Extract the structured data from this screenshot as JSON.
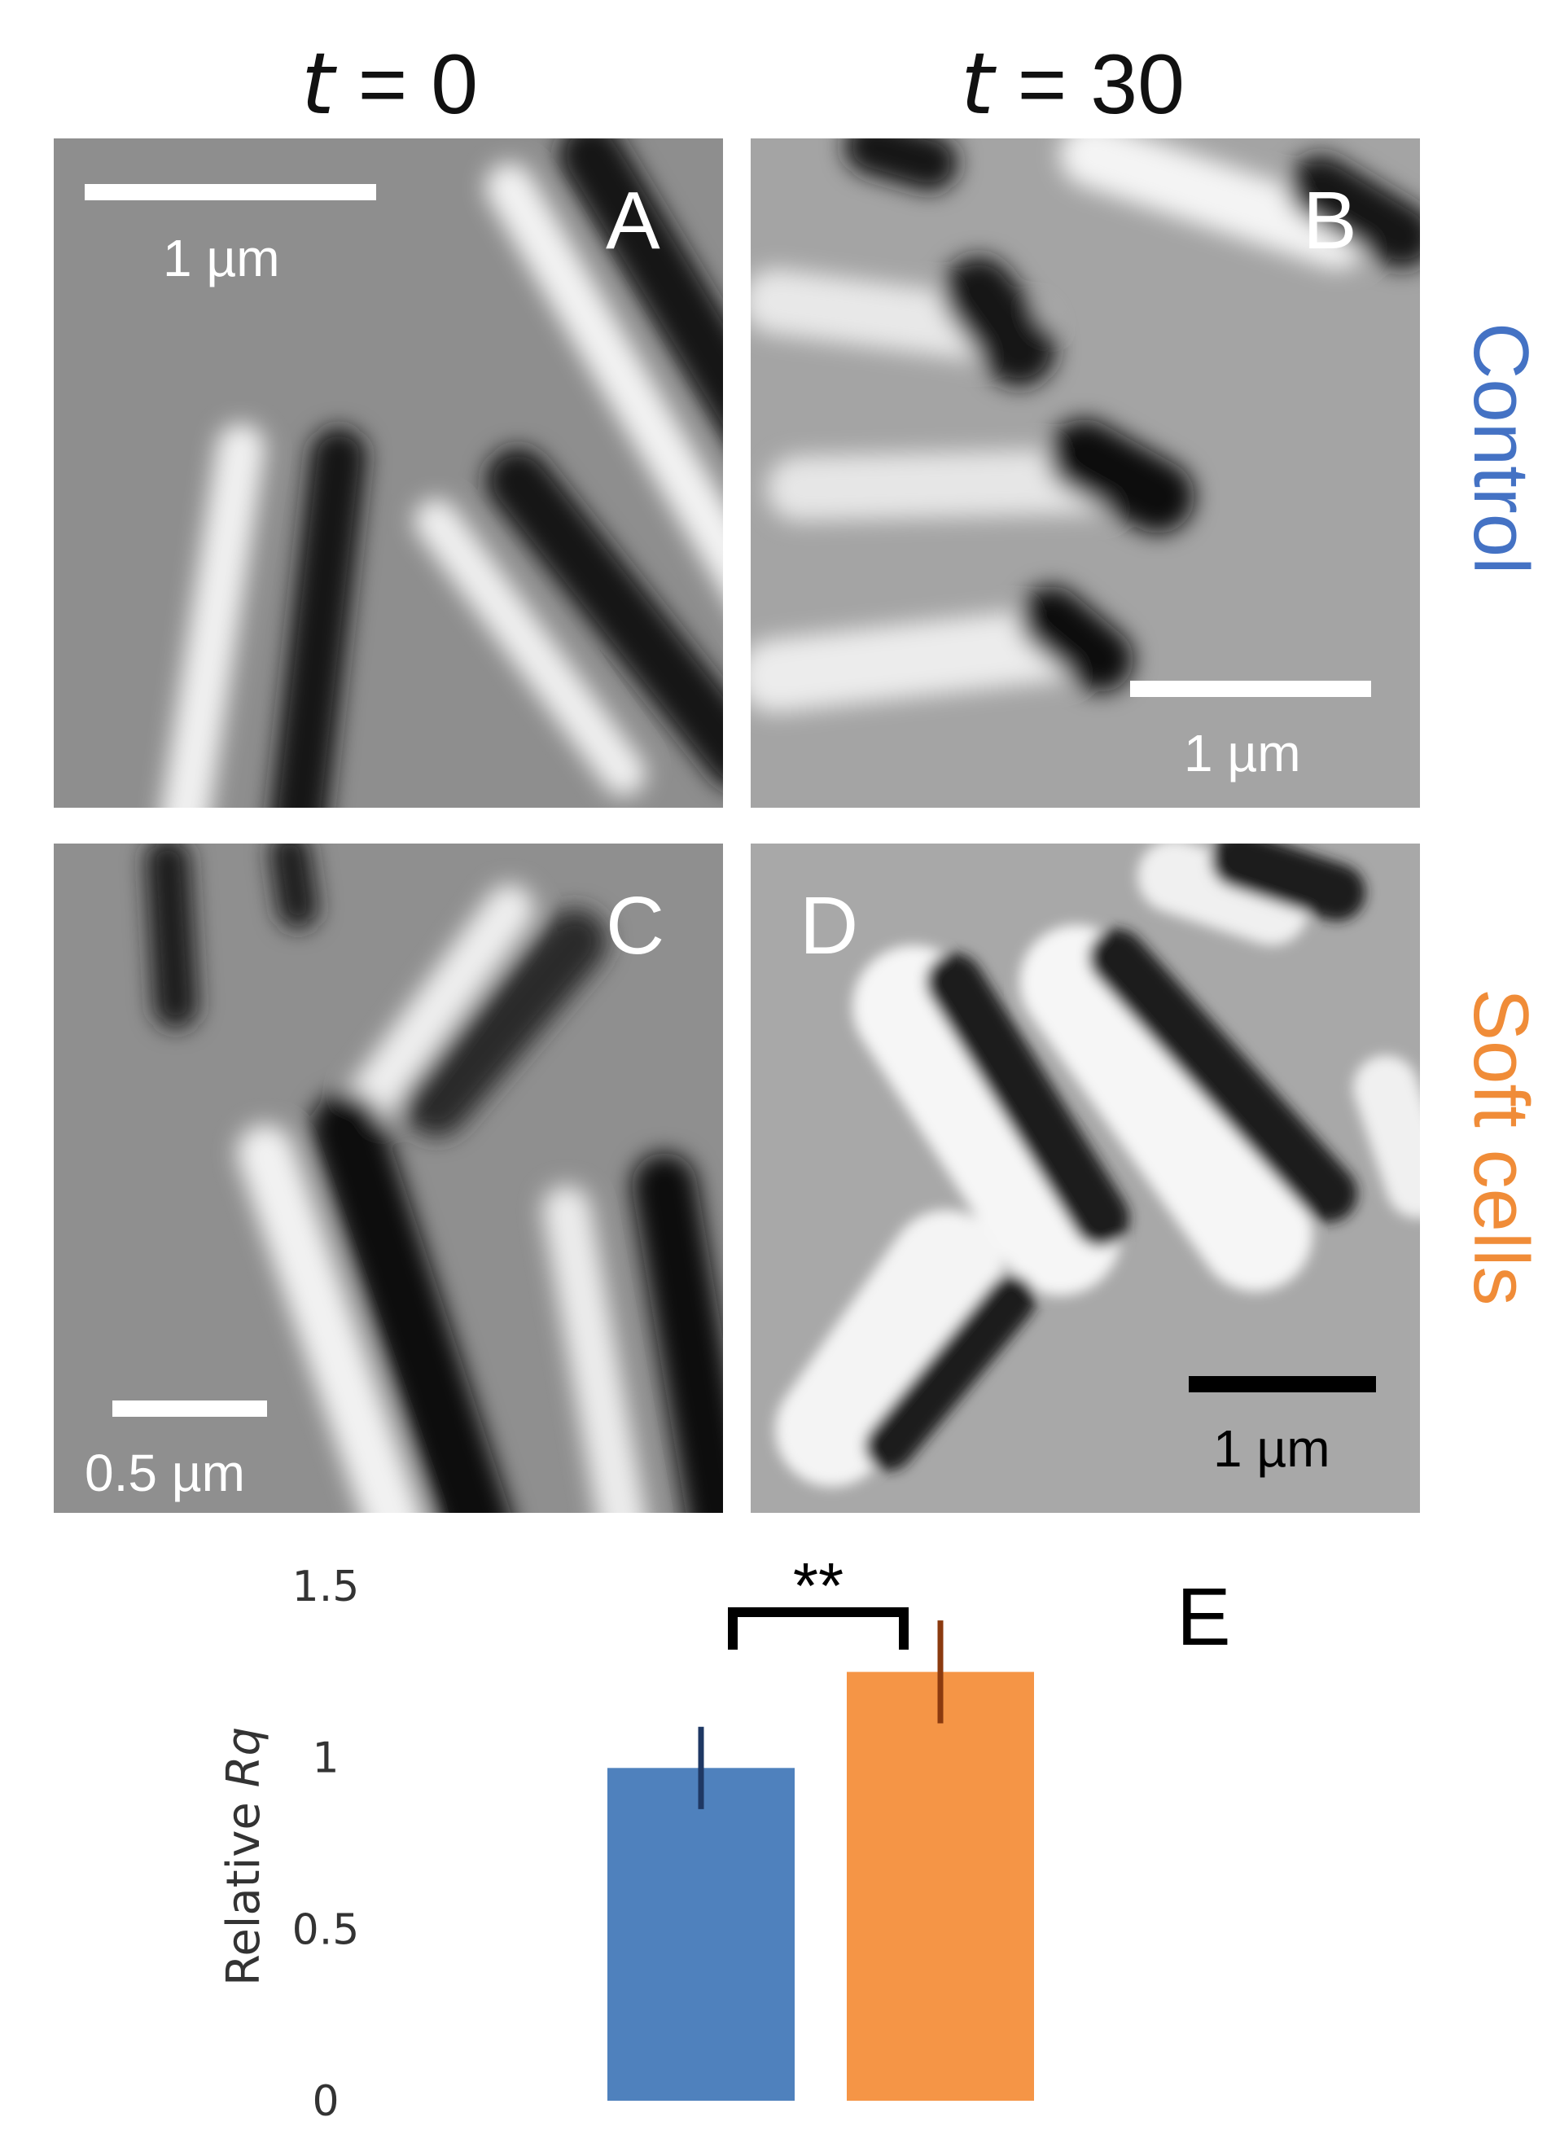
{
  "columns": {
    "left": {
      "var": "t",
      "rest": " = 0"
    },
    "right": {
      "var": "t",
      "rest": " = 30"
    }
  },
  "rows": {
    "top": {
      "label": "Control",
      "color": "#4472C4"
    },
    "bottom": {
      "label": "Soft cells",
      "color": "#F08C38"
    }
  },
  "panels": {
    "A": {
      "label": "A",
      "scalebar": "1 µm",
      "scalebar_color": "#ffffff"
    },
    "B": {
      "label": "B",
      "scalebar": "1 µm",
      "scalebar_color": "#ffffff"
    },
    "C": {
      "label": "C",
      "scalebar": "0.5 µm",
      "scalebar_color": "#ffffff"
    },
    "D": {
      "label": "D",
      "scalebar": "1 µm",
      "scalebar_color": "#000000"
    }
  },
  "chart_data": {
    "type": "bar",
    "panel_label": "E",
    "categories": [
      "Control",
      "Soft cells"
    ],
    "values": [
      0.97,
      1.25
    ],
    "errors": [
      0.12,
      0.15
    ],
    "colors": [
      "#4F81BD",
      "#F59546"
    ],
    "error_colors": [
      "#1F3864",
      "#8B3A0F"
    ],
    "ylabel_prefix": "Relative ",
    "ylabel_var": "Rq",
    "yticks": [
      "0",
      "0.5",
      "1",
      "1.5"
    ],
    "ylim": [
      0,
      1.5
    ],
    "significance": "**",
    "grid": false,
    "legend": "none"
  }
}
